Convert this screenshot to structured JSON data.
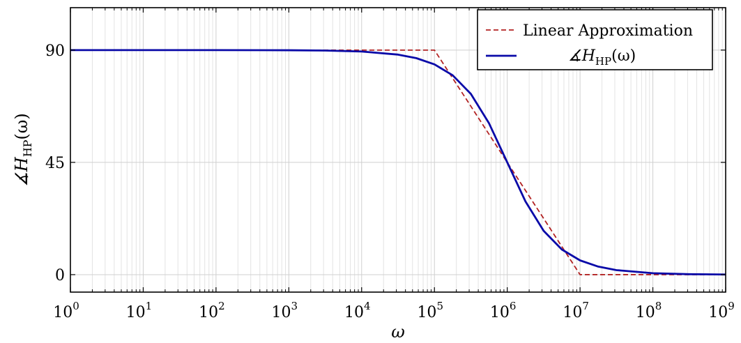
{
  "chart_data": {
    "type": "line",
    "xscale": "log",
    "xlim": [
      1,
      1000000000
    ],
    "ylim": [
      -7,
      107
    ],
    "grid": true,
    "xlabel": "ω",
    "ylabel": "∡H_HP(ω)",
    "ylabel_parts": {
      "main": "∡H",
      "sub": "HP",
      "tail": "(ω)"
    },
    "xticks": [
      {
        "base": "10",
        "exp": "0",
        "value": 1
      },
      {
        "base": "10",
        "exp": "1",
        "value": 10
      },
      {
        "base": "10",
        "exp": "2",
        "value": 100
      },
      {
        "base": "10",
        "exp": "3",
        "value": 1000
      },
      {
        "base": "10",
        "exp": "4",
        "value": 10000
      },
      {
        "base": "10",
        "exp": "5",
        "value": 100000
      },
      {
        "base": "10",
        "exp": "6",
        "value": 1000000
      },
      {
        "base": "10",
        "exp": "7",
        "value": 10000000
      },
      {
        "base": "10",
        "exp": "8",
        "value": 100000000
      },
      {
        "base": "10",
        "exp": "9",
        "value": 1000000000
      }
    ],
    "yticks": [
      {
        "label": "0",
        "value": 0
      },
      {
        "label": "45",
        "value": 45
      },
      {
        "label": "90",
        "value": 90
      }
    ],
    "legend_position": "top-right",
    "series": [
      {
        "name": "Linear Approximation",
        "color": "#b22222",
        "style": "dashed",
        "x": [
          1,
          100000,
          10000000,
          1000000000
        ],
        "y": [
          90,
          90,
          0,
          0
        ]
      },
      {
        "name": "∡H_HP(ω)",
        "legend_parts": {
          "main": "∡H",
          "sub": "HP",
          "tail": "(ω)"
        },
        "color": "#0a0aa8",
        "style": "solid",
        "x": [
          1,
          10,
          100,
          1000,
          3162,
          10000,
          31623,
          56234,
          100000,
          177828,
          316228,
          562341,
          1000000,
          1778279,
          3162278,
          5623413,
          10000000,
          17782794,
          31622777,
          100000000,
          316227766,
          1000000000
        ],
        "y": [
          90,
          90,
          89.99,
          89.94,
          89.82,
          89.43,
          88.19,
          86.78,
          84.29,
          79.92,
          72.45,
          60.64,
          45.0,
          29.36,
          17.55,
          10.08,
          5.71,
          3.22,
          1.81,
          0.57,
          0.18,
          0.06
        ]
      }
    ]
  }
}
